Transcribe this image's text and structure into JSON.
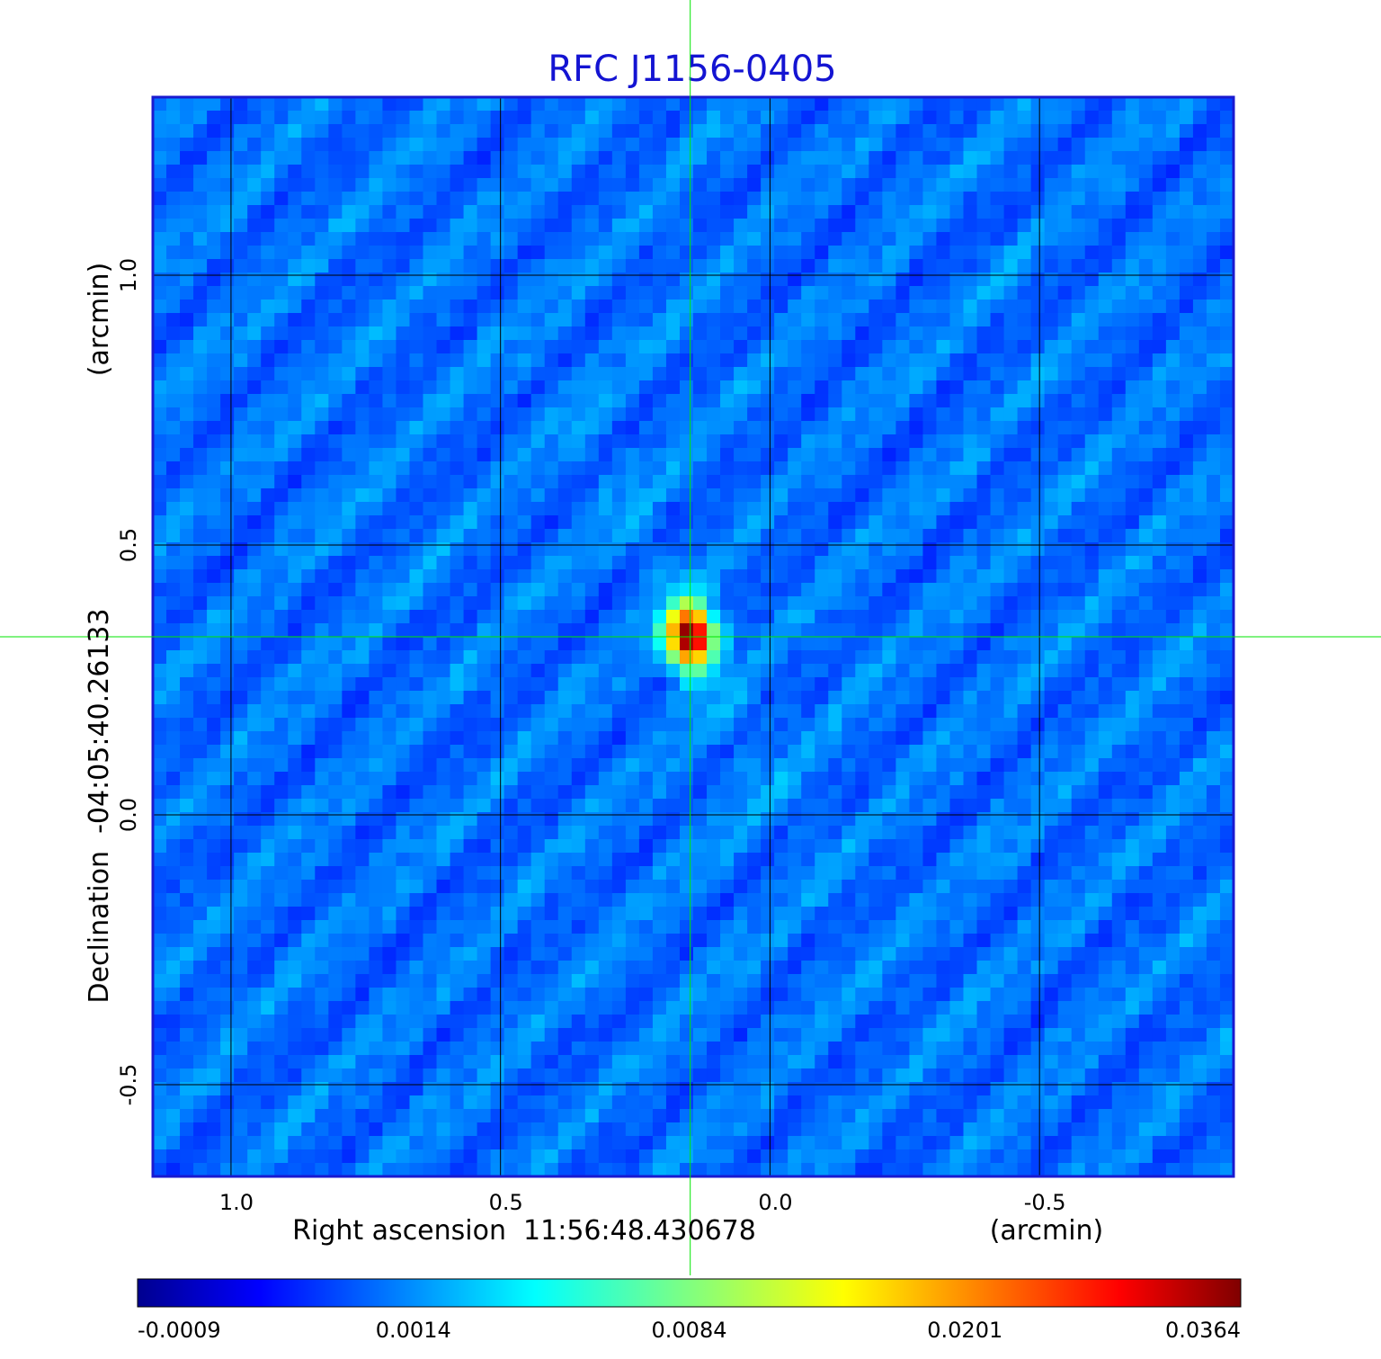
{
  "chart_data": {
    "type": "heatmap",
    "title": "RFC J1156-0405",
    "xlabel": "Right ascension  11:56:48.430678",
    "xunit": "(arcmin)",
    "ylabel": "Declination  -04:05:40.26133",
    "yunit": "(arcmin)",
    "xlim": [
      1.145,
      -0.86
    ],
    "ylim": [
      -0.67,
      1.33
    ],
    "x_ticks": [
      {
        "value": 1.0,
        "label": "1.0"
      },
      {
        "value": 0.5,
        "label": "0.5"
      },
      {
        "value": 0.0,
        "label": "0.0"
      },
      {
        "value": -0.5,
        "label": "-0.5"
      }
    ],
    "y_ticks": [
      {
        "value": 1.0,
        "label": "1.0"
      },
      {
        "value": 0.5,
        "label": "0.5"
      },
      {
        "value": 0.0,
        "label": "0.0"
      },
      {
        "value": -0.5,
        "label": "-0.5"
      }
    ],
    "grid": true,
    "crosshair": {
      "x": 0.148,
      "y": 0.33
    },
    "peak": {
      "x": 0.148,
      "y": 0.33,
      "value": 0.0364
    },
    "background_noise": "diagonal stripes, values near 0.0004",
    "colorbar": {
      "colormap": "jet",
      "tick_labels": [
        "-0.0009",
        "0.0014",
        "0.0084",
        "0.0201",
        "0.0364"
      ],
      "min": -0.0009,
      "max": 0.0364
    },
    "colors": {
      "title": "#1414d2",
      "crosshair": "#00e600",
      "grid": "#000000",
      "frame": "#1a1ad0"
    }
  }
}
